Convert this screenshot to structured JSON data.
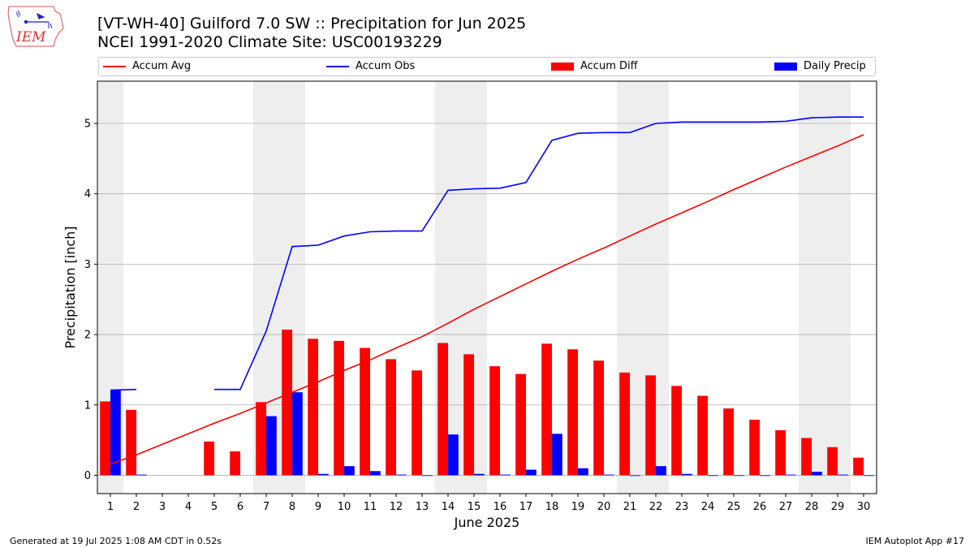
{
  "header": {
    "title_line1": "[VT-WH-40] Guilford 7.0 SW :: Precipitation for Jun 2025",
    "title_line2": "NCEI 1991-2020 Climate Site: USC00193229"
  },
  "logo": {
    "text": "IEM",
    "color": "#e0302e"
  },
  "footer": {
    "left": "Generated at 19 Jul 2025 1:08 AM CDT in 0.52s",
    "right": "IEM Autoplot App #17"
  },
  "chart_data": {
    "type": "bar",
    "xlabel": "June 2025",
    "ylabel": "Precipitation [inch]",
    "ylim": [
      -0.26,
      5.6
    ],
    "yticks": [
      0,
      1,
      2,
      3,
      4,
      5
    ],
    "grid": true,
    "legend_placement": "top",
    "x": [
      1,
      2,
      3,
      4,
      5,
      6,
      7,
      8,
      9,
      10,
      11,
      12,
      13,
      14,
      15,
      16,
      17,
      18,
      19,
      20,
      21,
      22,
      23,
      24,
      25,
      26,
      27,
      28,
      29,
      30
    ],
    "weekend_shading": [
      [
        0.5,
        1.5
      ],
      [
        6.5,
        8.5
      ],
      [
        13.5,
        15.5
      ],
      [
        20.5,
        22.5
      ],
      [
        27.5,
        29.5
      ]
    ],
    "colors": {
      "avg": "#ff0000",
      "obs": "#0000ff",
      "diff": "#ff0000",
      "daily": "#0000ff",
      "shade": "#eeeeee",
      "grid": "#b0b0b0"
    },
    "series": [
      {
        "name": "Accum Avg",
        "kind": "line",
        "values": [
          0.16,
          0.29,
          0.44,
          0.59,
          0.74,
          0.88,
          1.03,
          1.18,
          1.33,
          1.49,
          1.64,
          1.81,
          1.97,
          2.16,
          2.36,
          2.54,
          2.72,
          2.9,
          3.07,
          3.23,
          3.4,
          3.57,
          3.73,
          3.89,
          4.06,
          4.22,
          4.38,
          4.53,
          4.68,
          4.84
        ]
      },
      {
        "name": "Accum Obs",
        "kind": "line",
        "values": [
          1.21,
          1.22,
          null,
          null,
          1.22,
          1.22,
          2.05,
          3.25,
          3.27,
          3.4,
          3.46,
          3.47,
          3.47,
          4.05,
          4.07,
          4.08,
          4.16,
          4.76,
          4.86,
          4.87,
          4.87,
          5.0,
          5.02,
          5.02,
          5.02,
          5.02,
          5.03,
          5.08,
          5.09,
          5.09
        ]
      },
      {
        "name": "Accum Diff",
        "kind": "bar",
        "values": [
          1.05,
          0.93,
          null,
          null,
          0.48,
          0.34,
          1.04,
          2.07,
          1.94,
          1.91,
          1.81,
          1.65,
          1.49,
          1.88,
          1.72,
          1.55,
          1.44,
          1.87,
          1.79,
          1.63,
          1.46,
          1.42,
          1.27,
          1.13,
          0.95,
          0.79,
          0.64,
          0.53,
          0.4,
          0.25
        ]
      },
      {
        "name": "Daily Precip",
        "kind": "bar",
        "values": [
          1.21,
          0.01,
          null,
          null,
          null,
          null,
          0.84,
          1.18,
          0.02,
          0.13,
          0.06,
          0.01,
          0,
          0.58,
          0.02,
          0.01,
          0.08,
          0.59,
          0.1,
          0.01,
          0,
          0.13,
          0.02,
          0,
          0,
          0,
          0.01,
          0.05,
          0.01,
          0
        ]
      }
    ]
  }
}
